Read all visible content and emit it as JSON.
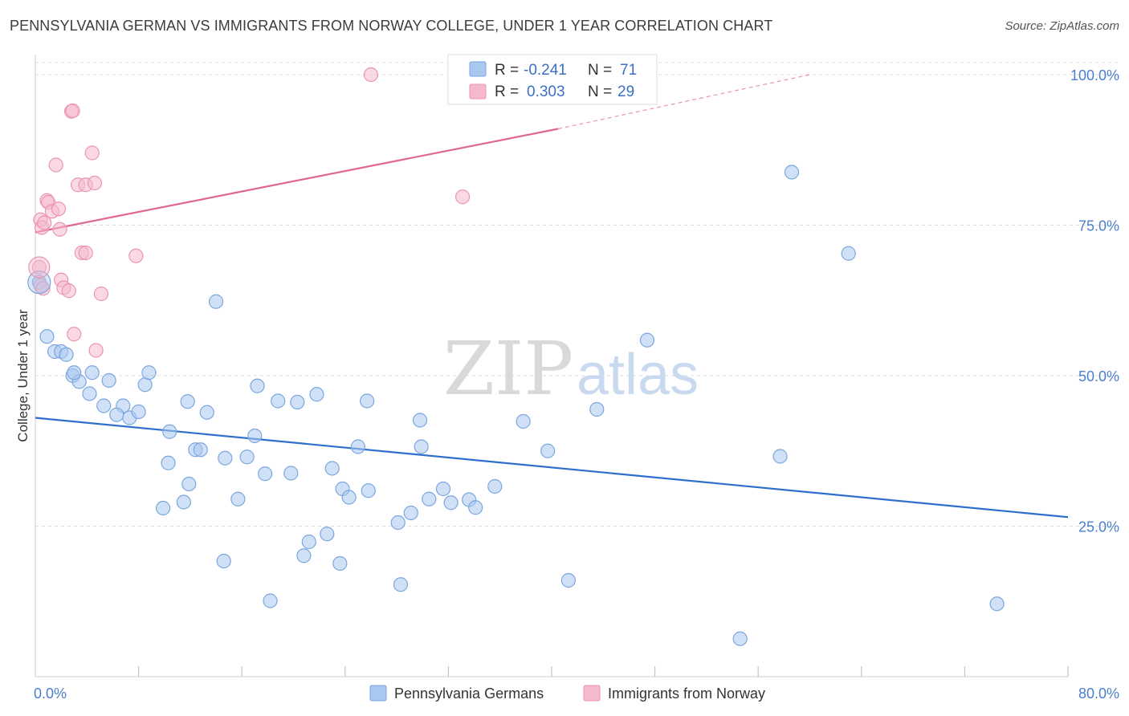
{
  "header": {
    "title": "PENNSYLVANIA GERMAN VS IMMIGRANTS FROM NORWAY COLLEGE, UNDER 1 YEAR CORRELATION CHART",
    "source": "Source: ZipAtlas.com"
  },
  "watermark": {
    "zip": "ZIP",
    "atlas": "atlas"
  },
  "stats": {
    "r_label": "R =",
    "n_label": "N =",
    "series1": {
      "r": "-0.241",
      "n": "71"
    },
    "series2": {
      "r": "0.303",
      "n": "29"
    }
  },
  "colors": {
    "series1_fill": "#a9c8f0",
    "series1_stroke": "#7aa6de",
    "series1_line": "#2e6fcc",
    "series2_fill": "#f6b9cc",
    "series2_stroke": "#eb94b0",
    "series2_line": "#e0678e",
    "tick_text": "#4a7fd0",
    "grid": "#dddddd"
  },
  "chart_data": {
    "type": "scatter",
    "title": "PENNSYLVANIA GERMAN VS IMMIGRANTS FROM NORWAY COLLEGE, UNDER 1 YEAR CORRELATION CHART",
    "xlabel": "",
    "ylabel": "College, Under 1 year",
    "xlim": [
      0,
      80
    ],
    "ylim": [
      0,
      102
    ],
    "x_tick_labels": [
      "0.0%",
      "80.0%"
    ],
    "y_ticks": [
      25,
      50,
      75,
      100
    ],
    "y_tick_labels": [
      "25.0%",
      "50.0%",
      "75.0%",
      "100.0%"
    ],
    "grid": true,
    "legend_position": "bottom-center",
    "series": [
      {
        "name": "Pennsylvania Germans",
        "r": -0.241,
        "n": 71,
        "trend": {
          "x0": 0,
          "y0": 43.0,
          "x1": 80,
          "y1": 26.5
        },
        "points": [
          [
            0.3,
            65.5
          ],
          [
            0.9,
            56.5
          ],
          [
            1.5,
            54
          ],
          [
            2.0,
            54
          ],
          [
            2.4,
            53.5
          ],
          [
            2.9,
            50
          ],
          [
            3.4,
            49
          ],
          [
            3.0,
            50.5
          ],
          [
            4.4,
            50.5
          ],
          [
            5.7,
            49.2
          ],
          [
            4.2,
            47
          ],
          [
            5.3,
            45
          ],
          [
            6.8,
            45
          ],
          [
            6.3,
            43.5
          ],
          [
            7.3,
            43
          ],
          [
            8.0,
            44
          ],
          [
            8.5,
            48.5
          ],
          [
            8.8,
            50.5
          ],
          [
            9.9,
            28
          ],
          [
            10.3,
            35.5
          ],
          [
            10.4,
            40.7
          ],
          [
            11.5,
            29
          ],
          [
            11.8,
            45.7
          ],
          [
            11.9,
            32
          ],
          [
            12.4,
            37.7
          ],
          [
            12.8,
            37.7
          ],
          [
            13.3,
            43.9
          ],
          [
            14.0,
            62.3
          ],
          [
            14.7,
            36.3
          ],
          [
            14.6,
            19.2
          ],
          [
            15.7,
            29.5
          ],
          [
            16.4,
            36.5
          ],
          [
            17.0,
            40
          ],
          [
            17.2,
            48.3
          ],
          [
            17.8,
            33.7
          ],
          [
            18.2,
            12.6
          ],
          [
            18.8,
            45.8
          ],
          [
            19.8,
            33.8
          ],
          [
            20.3,
            45.6
          ],
          [
            20.8,
            20.1
          ],
          [
            21.2,
            22.4
          ],
          [
            21.8,
            46.9
          ],
          [
            22.6,
            23.7
          ],
          [
            23.0,
            34.6
          ],
          [
            23.6,
            18.8
          ],
          [
            23.8,
            31.2
          ],
          [
            24.3,
            29.8
          ],
          [
            25.0,
            38.2
          ],
          [
            25.7,
            45.8
          ],
          [
            25.8,
            30.9
          ],
          [
            28.1,
            25.6
          ],
          [
            28.3,
            15.3
          ],
          [
            29.1,
            27.2
          ],
          [
            29.9,
            38.2
          ],
          [
            29.8,
            42.6
          ],
          [
            30.5,
            29.5
          ],
          [
            31.6,
            31.2
          ],
          [
            32.2,
            28.9
          ],
          [
            33.6,
            29.4
          ],
          [
            34.1,
            28.1
          ],
          [
            35.6,
            31.6
          ],
          [
            37.8,
            42.4
          ],
          [
            39.7,
            37.5
          ],
          [
            41.3,
            16
          ],
          [
            43.5,
            44.4
          ],
          [
            47.4,
            55.9
          ],
          [
            54.6,
            6.3
          ],
          [
            57.7,
            36.6
          ],
          [
            58.6,
            83.8
          ],
          [
            63.0,
            70.3
          ],
          [
            74.5,
            12.1
          ]
        ]
      },
      {
        "name": "Immigrants from Norway",
        "r": 0.303,
        "n": 29,
        "trend": {
          "x0": 0,
          "y0": 73.8,
          "x1": 40.5,
          "y1": 91.0,
          "dash_to_x": 60,
          "dash_to_y": 100
        },
        "points": [
          [
            0.3,
            68
          ],
          [
            0.4,
            75.9
          ],
          [
            0.5,
            74.6
          ],
          [
            0.7,
            75.4
          ],
          [
            0.9,
            79.1
          ],
          [
            1.0,
            78.8
          ],
          [
            1.3,
            77.3
          ],
          [
            1.6,
            85
          ],
          [
            1.9,
            74.3
          ],
          [
            1.8,
            77.7
          ],
          [
            2.0,
            65.9
          ],
          [
            2.2,
            64.6
          ],
          [
            2.6,
            64.1
          ],
          [
            2.8,
            93.9
          ],
          [
            2.9,
            94
          ],
          [
            3.0,
            56.9
          ],
          [
            3.3,
            81.7
          ],
          [
            3.6,
            70.4
          ],
          [
            3.9,
            70.4
          ],
          [
            3.9,
            81.7
          ],
          [
            4.4,
            87
          ],
          [
            4.6,
            82
          ],
          [
            4.7,
            54.2
          ],
          [
            5.1,
            63.6
          ],
          [
            7.8,
            69.9
          ],
          [
            0.4,
            65
          ],
          [
            0.6,
            64.5
          ],
          [
            26.0,
            100
          ],
          [
            33.1,
            79.7
          ]
        ]
      }
    ]
  }
}
